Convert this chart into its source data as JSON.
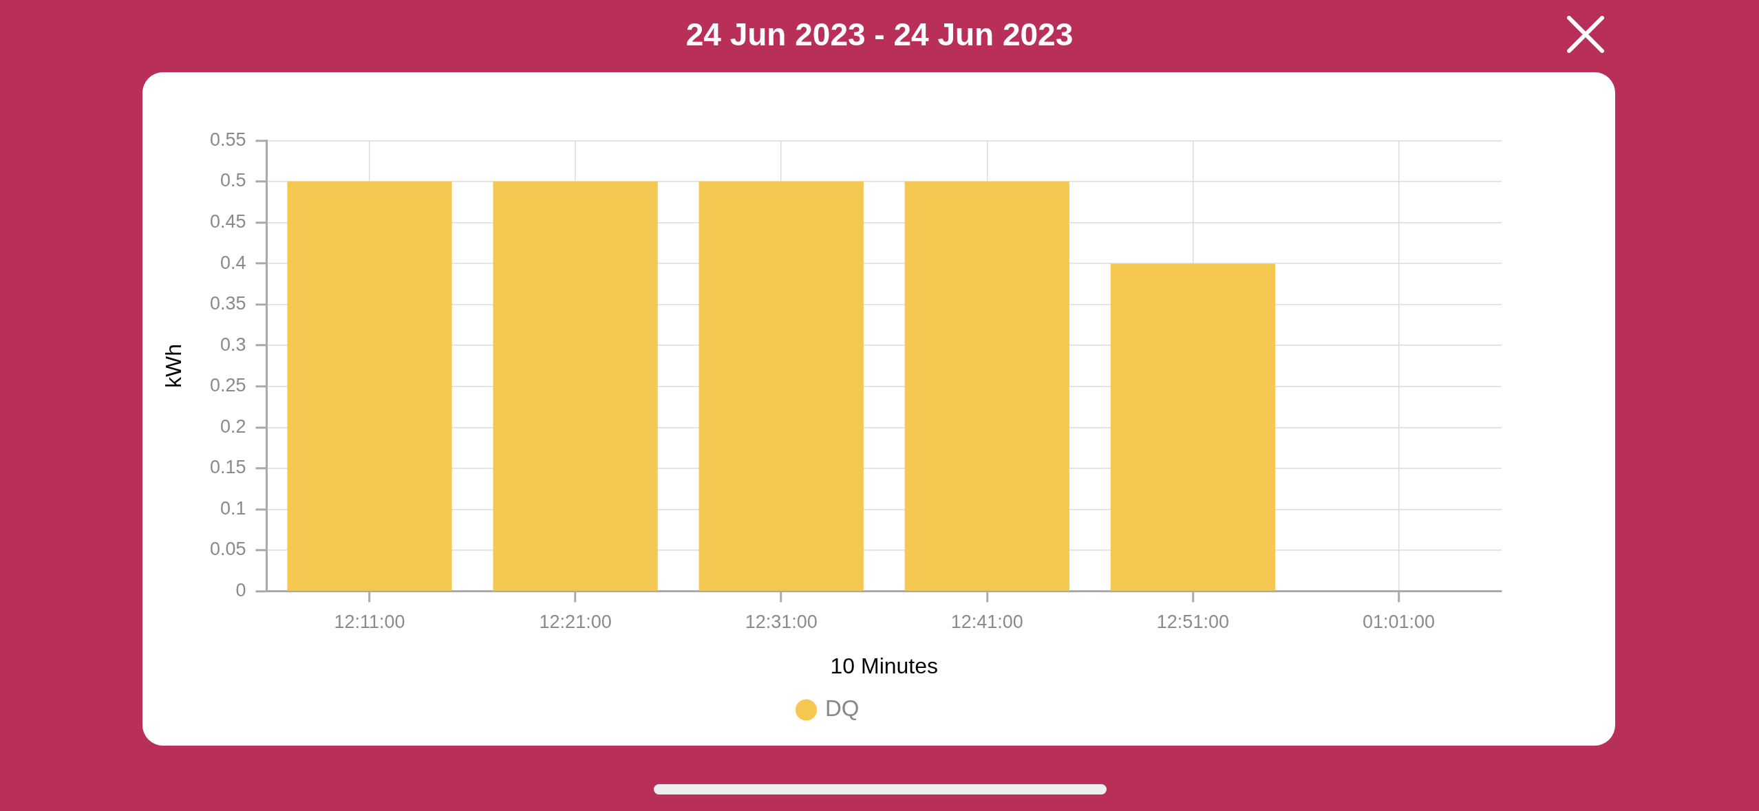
{
  "chart_data": {
    "type": "bar",
    "title": "24 Jun 2023 - 24 Jun 2023",
    "xlabel": "10 Minutes",
    "ylabel": "kWh",
    "categories": [
      "12:11:00",
      "12:21:00",
      "12:31:00",
      "12:41:00",
      "12:51:00",
      "01:01:00"
    ],
    "series": [
      {
        "name": "DQ",
        "color": "#f5c852",
        "values": [
          0.5,
          0.5,
          0.5,
          0.5,
          0.4,
          null
        ]
      }
    ],
    "ylim": [
      0,
      0.55
    ],
    "yticks": [
      0,
      0.05,
      0.1,
      0.15,
      0.2,
      0.25,
      0.3,
      0.35,
      0.4,
      0.45,
      0.5,
      0.55
    ],
    "grid": true,
    "legend": "bottom"
  }
}
